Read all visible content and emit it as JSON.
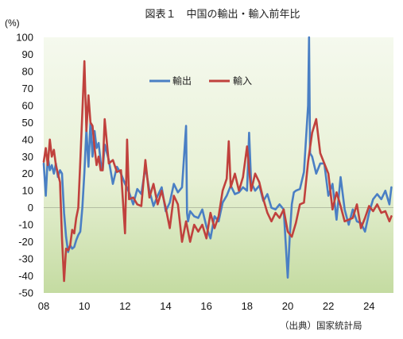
{
  "title": "図表１　中国の輸出・輸入前年比",
  "source": "（出典）国家統計局",
  "colors": {
    "exports": "#4a7fc4",
    "imports": "#c0413d"
  },
  "chart_data": {
    "type": "line",
    "title": "図表１　中国の輸出・輸入前年比",
    "ylabel": "(%)",
    "xlabel": "",
    "ylim": [
      -50,
      100
    ],
    "yticks": [
      100,
      90,
      80,
      70,
      60,
      50,
      40,
      30,
      20,
      10,
      0,
      -10,
      -20,
      -30,
      -40,
      -50
    ],
    "xlim": [
      2008,
      2025.2
    ],
    "xticks": [
      {
        "value": 2008,
        "label": "08"
      },
      {
        "value": 2010,
        "label": "10"
      },
      {
        "value": 2012,
        "label": "12"
      },
      {
        "value": 2014,
        "label": "14"
      },
      {
        "value": 2016,
        "label": "16"
      },
      {
        "value": 2018,
        "label": "18"
      },
      {
        "value": 2020,
        "label": "20"
      },
      {
        "value": 2022,
        "label": "22"
      },
      {
        "value": 2024,
        "label": "24"
      }
    ],
    "legend_position": "upper-center",
    "grid": false,
    "series": [
      {
        "name": "輸出",
        "color": "#4a7fc4",
        "x": [
          2008.0,
          2008.1,
          2008.2,
          2008.3,
          2008.4,
          2008.5,
          2008.6,
          2008.7,
          2008.8,
          2008.9,
          2009.0,
          2009.1,
          2009.2,
          2009.3,
          2009.4,
          2009.5,
          2009.6,
          2009.7,
          2009.8,
          2009.9,
          2010.0,
          2010.1,
          2010.2,
          2010.3,
          2010.4,
          2010.5,
          2010.6,
          2010.7,
          2010.8,
          2010.9,
          2011.0,
          2011.2,
          2011.4,
          2011.6,
          2011.8,
          2012.0,
          2012.2,
          2012.4,
          2012.6,
          2012.8,
          2013.0,
          2013.2,
          2013.4,
          2013.6,
          2013.8,
          2014.0,
          2014.2,
          2014.4,
          2014.6,
          2014.8,
          2015.0,
          2015.05,
          2015.1,
          2015.2,
          2015.4,
          2015.6,
          2015.8,
          2016.0,
          2016.2,
          2016.4,
          2016.6,
          2016.8,
          2017.0,
          2017.2,
          2017.4,
          2017.6,
          2017.8,
          2018.0,
          2018.1,
          2018.2,
          2018.4,
          2018.6,
          2018.8,
          2019.0,
          2019.2,
          2019.4,
          2019.6,
          2019.8,
          2020.0,
          2020.1,
          2020.2,
          2020.3,
          2020.4,
          2020.6,
          2020.8,
          2021.0,
          2021.05,
          2021.1,
          2021.2,
          2021.4,
          2021.6,
          2021.8,
          2022.0,
          2022.2,
          2022.4,
          2022.6,
          2022.8,
          2023.0,
          2023.2,
          2023.4,
          2023.6,
          2023.8,
          2024.0,
          2024.2,
          2024.4,
          2024.6,
          2024.8,
          2025.0,
          2025.1
        ],
        "y": [
          26,
          7,
          30,
          22,
          25,
          20,
          26,
          18,
          22,
          20,
          -3,
          -17,
          -26,
          -22,
          -24,
          -23,
          -19,
          -16,
          -14,
          0,
          21,
          46,
          24,
          50,
          30,
          45,
          35,
          38,
          27,
          22,
          37,
          28,
          14,
          24,
          20,
          14,
          9,
          2,
          11,
          8,
          24,
          10,
          1,
          7,
          12,
          -2,
          3,
          14,
          9,
          12,
          48,
          -3,
          -8,
          -2,
          -5,
          -6,
          -1,
          -11,
          -18,
          -5,
          -8,
          3,
          7,
          13,
          8,
          9,
          12,
          10,
          44,
          15,
          10,
          13,
          4,
          8,
          0,
          -1,
          2,
          -1,
          -41,
          -17,
          2,
          9,
          10,
          11,
          21,
          60,
          100,
          32,
          30,
          20,
          26,
          26,
          7,
          14,
          -7,
          18,
          -1,
          -10,
          -1,
          -8,
          -9,
          -14,
          -3,
          5,
          8,
          5,
          10,
          2,
          12
        ]
      },
      {
        "name": "輸入",
        "color": "#c0413d",
        "x": [
          2008.0,
          2008.1,
          2008.2,
          2008.3,
          2008.4,
          2008.5,
          2008.6,
          2008.7,
          2008.8,
          2008.9,
          2009.0,
          2009.1,
          2009.2,
          2009.3,
          2009.4,
          2009.5,
          2009.6,
          2009.7,
          2009.8,
          2009.9,
          2010.0,
          2010.1,
          2010.2,
          2010.3,
          2010.4,
          2010.5,
          2010.6,
          2010.7,
          2010.8,
          2010.9,
          2011.0,
          2011.2,
          2011.4,
          2011.6,
          2011.8,
          2012.0,
          2012.1,
          2012.2,
          2012.4,
          2012.6,
          2012.8,
          2013.0,
          2013.2,
          2013.4,
          2013.6,
          2013.8,
          2014.0,
          2014.2,
          2014.4,
          2014.6,
          2014.8,
          2015.0,
          2015.2,
          2015.4,
          2015.6,
          2015.8,
          2016.0,
          2016.2,
          2016.4,
          2016.6,
          2016.8,
          2017.0,
          2017.1,
          2017.2,
          2017.4,
          2017.6,
          2017.8,
          2018.0,
          2018.2,
          2018.4,
          2018.6,
          2018.8,
          2019.0,
          2019.2,
          2019.4,
          2019.6,
          2019.8,
          2020.0,
          2020.2,
          2020.4,
          2020.6,
          2020.8,
          2021.0,
          2021.2,
          2021.4,
          2021.6,
          2021.8,
          2022.0,
          2022.2,
          2022.4,
          2022.6,
          2022.8,
          2023.0,
          2023.2,
          2023.4,
          2023.6,
          2023.8,
          2024.0,
          2024.2,
          2024.4,
          2024.6,
          2024.8,
          2025.0,
          2025.1
        ],
        "y": [
          27,
          35,
          25,
          40,
          30,
          34,
          25,
          20,
          15,
          -18,
          -43,
          -24,
          -25,
          -22,
          -13,
          -15,
          -6,
          0,
          27,
          56,
          86,
          45,
          66,
          50,
          48,
          35,
          25,
          30,
          22,
          22,
          52,
          26,
          28,
          21,
          22,
          -15,
          40,
          5,
          6,
          2,
          1,
          28,
          6,
          14,
          2,
          10,
          0,
          -12,
          7,
          2,
          -20,
          -8,
          -20,
          -10,
          -14,
          -10,
          -18,
          -3,
          -12,
          -5,
          10,
          17,
          39,
          12,
          20,
          10,
          18,
          36,
          10,
          20,
          15,
          5,
          -3,
          -8,
          -3,
          -6,
          -1,
          -14,
          -17,
          -9,
          2,
          3,
          27,
          44,
          52,
          32,
          26,
          20,
          -1,
          9,
          1,
          -8,
          -7,
          -6,
          2,
          -12,
          -6,
          1,
          -2,
          2,
          -3,
          -2,
          -8,
          -5
        ]
      }
    ]
  }
}
